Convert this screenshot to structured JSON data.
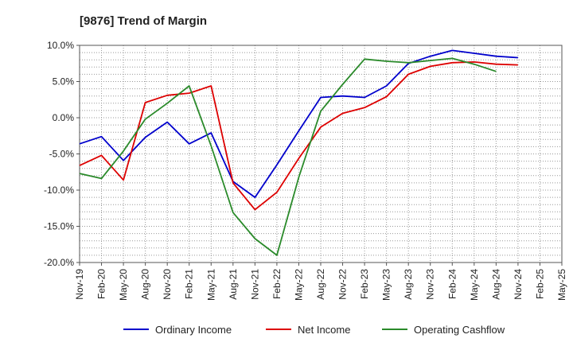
{
  "chart_data": {
    "type": "line",
    "title": "[9876]  Trend of Margin",
    "xlabel": "",
    "ylabel": "",
    "ylim": [
      -20,
      10
    ],
    "yticks": [
      10,
      5,
      0,
      -5,
      -10,
      -15,
      -20
    ],
    "ytick_labels": [
      "10.0%",
      "5.0%",
      "0.0%",
      "-5.0%",
      "-10.0%",
      "-15.0%",
      "-20.0%"
    ],
    "x": [
      "Nov-19",
      "Feb-20",
      "May-20",
      "Aug-20",
      "Nov-20",
      "Feb-21",
      "May-21",
      "Aug-21",
      "Nov-21",
      "Feb-22",
      "May-22",
      "Aug-22",
      "Nov-22",
      "Feb-23",
      "May-23",
      "Aug-23",
      "Nov-23",
      "Feb-24",
      "May-24",
      "Aug-24",
      "Nov-24",
      "Feb-25",
      "May-25"
    ],
    "grid": true,
    "legend_position": "bottom",
    "series": [
      {
        "name": "Ordinary Income",
        "color": "#0000cc",
        "values": [
          -3.6,
          -2.6,
          -5.9,
          -2.7,
          -0.6,
          -3.6,
          -2.1,
          -8.8,
          -11.0,
          -6.5,
          -1.8,
          2.8,
          3.0,
          2.8,
          4.4,
          7.5,
          8.5,
          9.3,
          8.9,
          8.5,
          8.3,
          null,
          null
        ]
      },
      {
        "name": "Net Income",
        "color": "#dd0000",
        "values": [
          -6.6,
          -5.2,
          -8.6,
          2.1,
          3.1,
          3.4,
          4.4,
          -9.0,
          -12.7,
          -10.3,
          -5.6,
          -1.3,
          0.6,
          1.4,
          2.9,
          6.0,
          7.1,
          7.6,
          7.7,
          7.4,
          7.3,
          null,
          null
        ]
      },
      {
        "name": "Operating Cashflow",
        "color": "#2a8a2a",
        "values": [
          -7.7,
          -8.4,
          -4.6,
          -0.2,
          2.0,
          4.4,
          -3.9,
          -13.1,
          -16.7,
          -19.0,
          -8.2,
          0.9,
          4.6,
          8.1,
          7.8,
          7.6,
          7.9,
          8.2,
          7.4,
          6.4,
          null,
          null,
          null
        ]
      }
    ]
  }
}
